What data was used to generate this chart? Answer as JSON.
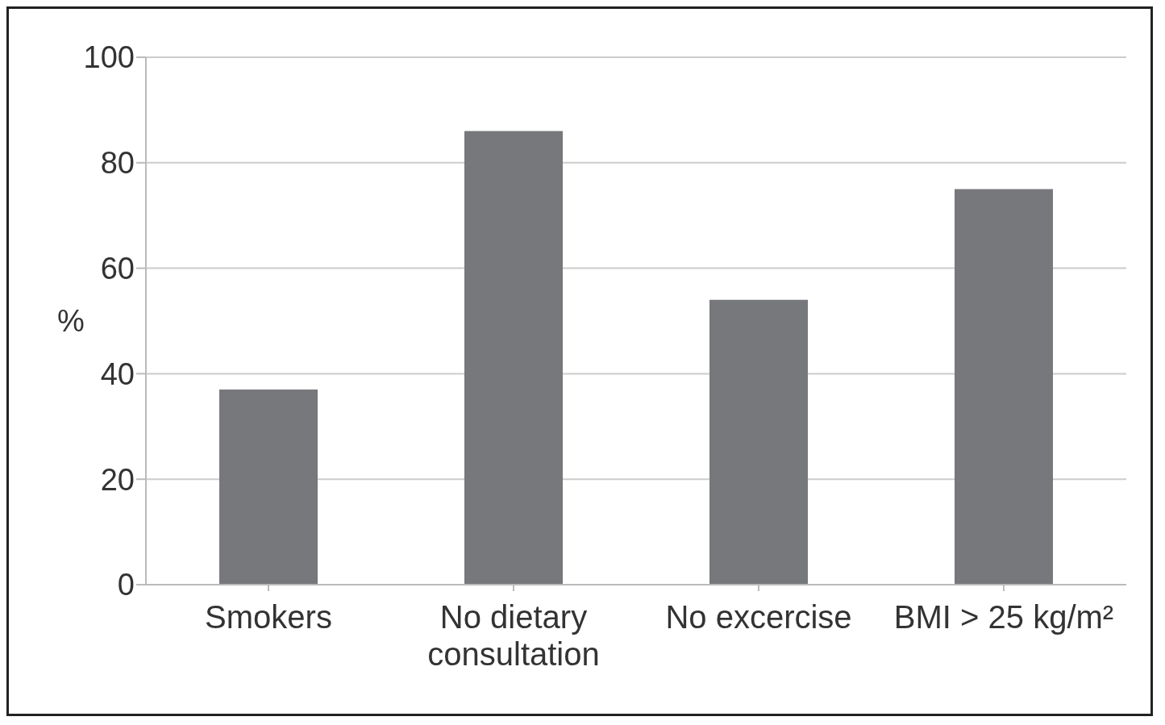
{
  "chart_data": {
    "type": "bar",
    "ylabel": "%",
    "categories": [
      "Smokers",
      "No dietary consultation",
      "No excercise",
      "BMI > 25 kg/m²"
    ],
    "values": [
      37,
      86,
      54,
      75
    ],
    "color": "#77787b",
    "ylim": [
      0,
      100
    ],
    "yticks": [
      0,
      20,
      40,
      60,
      80,
      100
    ],
    "grid": "y"
  }
}
